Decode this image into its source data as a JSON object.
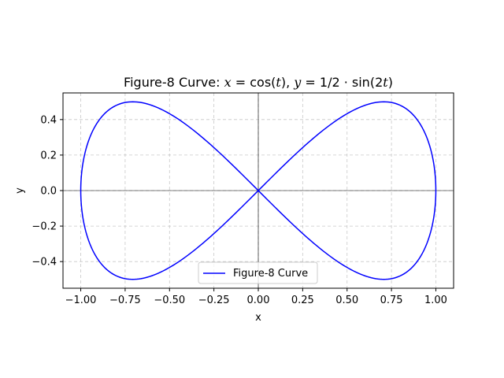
{
  "chart_data": {
    "type": "line",
    "title": {
      "prefix": "Figure-8 Curve: ",
      "x_var": "x",
      "eq1": " = cos(",
      "t1": "t",
      "mid": "), ",
      "y_var": "y",
      "eq2": " = 1/2 · sin(2",
      "t2": "t",
      "suffix": ")"
    },
    "xlabel": "x",
    "ylabel": "y",
    "xlim": [
      -1.1,
      1.1
    ],
    "ylim": [
      -0.55,
      0.55
    ],
    "xticks": [
      -1.0,
      -0.75,
      -0.5,
      -0.25,
      0.0,
      0.25,
      0.5,
      0.75,
      1.0
    ],
    "xtick_labels": [
      "−1.00",
      "−0.75",
      "−0.50",
      "−0.25",
      "0.00",
      "0.25",
      "0.50",
      "0.75",
      "1.00"
    ],
    "yticks": [
      -0.4,
      -0.2,
      0.0,
      0.2,
      0.4
    ],
    "ytick_labels": [
      "−0.4",
      "−0.2",
      "0.0",
      "0.2",
      "0.4"
    ],
    "grid": true,
    "zero_lines": true,
    "legend_position": "lower-center",
    "series": [
      {
        "name": "Figure-8 Curve",
        "color": "#0000ff",
        "x_expr": "cos(t)",
        "y_expr": "1/2 · sin(2t)",
        "t_range": [
          0,
          6.283185
        ],
        "samples": 400
      }
    ]
  }
}
